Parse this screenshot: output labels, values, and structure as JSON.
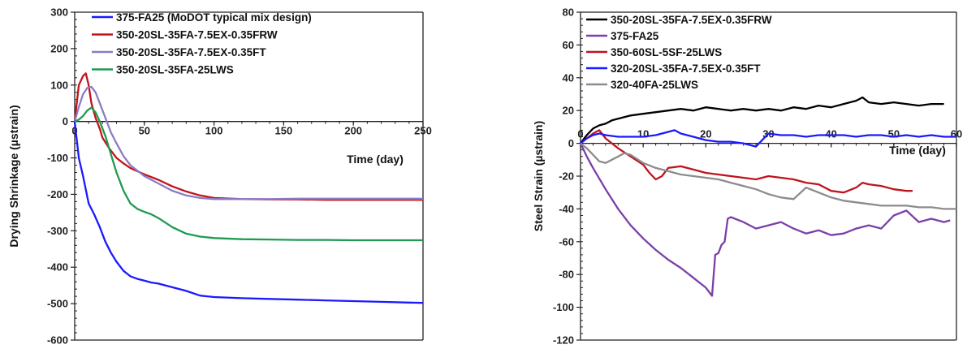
{
  "chart_data": [
    {
      "type": "line",
      "title": "",
      "xlabel": "Time (day)",
      "ylabel": "Drying Shrinkage (µstrain)",
      "xlim": [
        0,
        250
      ],
      "ylim": [
        -600,
        300
      ],
      "x_ticks": [
        "0",
        "50",
        "100",
        "150",
        "200",
        "250"
      ],
      "y_ticks": [
        "300",
        "200",
        "100",
        "0",
        "-100",
        "-200",
        "-300",
        "-400",
        "-500",
        "-600"
      ],
      "grid": false,
      "legend_position": "top-right",
      "series": [
        {
          "name": "375-FA25 (MoDOT typical mix design)",
          "color": "#1a1aff",
          "x": [
            0,
            3,
            6,
            10,
            14,
            18,
            22,
            26,
            30,
            35,
            40,
            45,
            50,
            55,
            60,
            70,
            80,
            90,
            100,
            120,
            140,
            160,
            180,
            200,
            220,
            240,
            250
          ],
          "y": [
            0,
            -100,
            -150,
            -225,
            -255,
            -290,
            -330,
            -360,
            -385,
            -410,
            -425,
            -432,
            -437,
            -442,
            -445,
            -455,
            -465,
            -478,
            -482,
            -485,
            -487,
            -489,
            -491,
            -493,
            -495,
            -497,
            -498
          ]
        },
        {
          "name": "350-20SL-35FA-7.5EX-0.35FRW",
          "color": "#c0141c",
          "x": [
            0,
            3,
            6,
            8,
            10,
            12,
            15,
            18,
            20,
            25,
            30,
            35,
            40,
            50,
            60,
            70,
            80,
            90,
            100,
            120,
            140,
            160,
            180,
            200,
            220,
            250
          ],
          "y": [
            0,
            100,
            125,
            132,
            100,
            50,
            10,
            -20,
            -45,
            -75,
            -100,
            -115,
            -128,
            -145,
            -160,
            -178,
            -192,
            -203,
            -210,
            -213,
            -214,
            -214,
            -215,
            -215,
            -215,
            -215
          ]
        },
        {
          "name": "350-20SL-35FA-7.5EX-0.35FT",
          "color": "#8c7cc4",
          "x": [
            0,
            3,
            6,
            9,
            12,
            15,
            18,
            22,
            26,
            30,
            35,
            40,
            50,
            60,
            70,
            80,
            90,
            100,
            120,
            140,
            160,
            180,
            200,
            220,
            250
          ],
          "y": [
            0,
            40,
            75,
            92,
            95,
            80,
            50,
            10,
            -30,
            -60,
            -95,
            -120,
            -150,
            -170,
            -190,
            -203,
            -210,
            -213,
            -213,
            -213,
            -212,
            -212,
            -212,
            -212,
            -212
          ]
        },
        {
          "name": "350-20SL-35FA-25LWS",
          "color": "#1f9a50",
          "x": [
            0,
            3,
            6,
            9,
            12,
            15,
            18,
            22,
            26,
            30,
            35,
            40,
            45,
            50,
            55,
            60,
            70,
            80,
            90,
            100,
            120,
            140,
            160,
            180,
            200,
            220,
            250
          ],
          "y": [
            0,
            5,
            15,
            30,
            38,
            25,
            0,
            -40,
            -90,
            -140,
            -190,
            -225,
            -240,
            -248,
            -255,
            -265,
            -290,
            -308,
            -316,
            -320,
            -323,
            -324,
            -325,
            -325,
            -326,
            -326,
            -326
          ]
        }
      ]
    },
    {
      "type": "line",
      "title": "",
      "xlabel": "Time (day)",
      "ylabel": "Steel Strain (µstrain)",
      "xlim": [
        0,
        60
      ],
      "ylim": [
        -120,
        80
      ],
      "x_ticks": [
        "0",
        "10",
        "20",
        "30",
        "40",
        "50",
        "60"
      ],
      "y_ticks": [
        "80",
        "60",
        "40",
        "20",
        "0",
        "-20",
        "-40",
        "-60",
        "-80",
        "-100",
        "-120"
      ],
      "grid": false,
      "legend_position": "top-left",
      "series": [
        {
          "name": "350-20SL-35FA-7.5EX-0.35FRW",
          "color": "#000000",
          "x": [
            0,
            1,
            2,
            3,
            4,
            5,
            6,
            8,
            10,
            12,
            14,
            16,
            18,
            20,
            22,
            24,
            26,
            28,
            30,
            32,
            34,
            36,
            38,
            40,
            42,
            44,
            45,
            46,
            48,
            50,
            52,
            54,
            56,
            58
          ],
          "y": [
            0,
            5,
            9,
            11,
            12,
            14,
            15,
            17,
            18,
            19,
            20,
            21,
            20,
            22,
            21,
            20,
            21,
            20,
            21,
            20,
            22,
            21,
            23,
            22,
            24,
            26,
            28,
            25,
            24,
            25,
            24,
            23,
            24,
            24
          ]
        },
        {
          "name": "375-FA25",
          "color": "#7b3fa8",
          "x": [
            0,
            1,
            2,
            4,
            6,
            8,
            10,
            12,
            14,
            16,
            18,
            20,
            21,
            21.5,
            22,
            22.5,
            23,
            23.5,
            24,
            26,
            28,
            30,
            32,
            34,
            36,
            38,
            40,
            42,
            44,
            46,
            48,
            50,
            52,
            54,
            56,
            58,
            59
          ],
          "y": [
            0,
            -8,
            -15,
            -28,
            -40,
            -50,
            -58,
            -65,
            -71,
            -76,
            -82,
            -88,
            -93,
            -68,
            -67,
            -62,
            -60,
            -46,
            -45,
            -48,
            -52,
            -50,
            -48,
            -52,
            -55,
            -53,
            -56,
            -55,
            -52,
            -50,
            -52,
            -44,
            -41,
            -48,
            -46,
            -48,
            -47
          ]
        },
        {
          "name": "350-60SL-5SF-25LWS",
          "color": "#c0141c",
          "x": [
            0,
            1,
            2,
            3,
            4,
            6,
            8,
            10,
            11,
            12,
            13,
            14,
            16,
            18,
            20,
            22,
            24,
            26,
            28,
            30,
            32,
            34,
            36,
            38,
            40,
            42,
            44,
            45,
            46,
            48,
            50,
            52,
            53
          ],
          "y": [
            0,
            3,
            6,
            8,
            3,
            -3,
            -8,
            -13,
            -18,
            -22,
            -20,
            -15,
            -14,
            -16,
            -18,
            -19,
            -20,
            -21,
            -22,
            -20,
            -21,
            -22,
            -24,
            -25,
            -29,
            -30,
            -27,
            -24,
            -25,
            -26,
            -28,
            -29,
            -29
          ]
        },
        {
          "name": "320-20SL-35FA-7.5EX-0.35FT",
          "color": "#1a1aff",
          "x": [
            0,
            1,
            2,
            3,
            4,
            6,
            8,
            10,
            12,
            14,
            15,
            16,
            18,
            20,
            22,
            24,
            26,
            27,
            28,
            29,
            30,
            32,
            34,
            36,
            38,
            40,
            42,
            44,
            46,
            48,
            50,
            52,
            54,
            56,
            58,
            60
          ],
          "y": [
            0,
            3,
            5,
            6,
            5,
            4,
            4,
            4,
            5,
            7,
            8,
            6,
            4,
            2,
            1,
            1,
            0,
            -1,
            -2,
            2,
            6,
            5,
            5,
            4,
            5,
            5,
            5,
            4,
            5,
            5,
            4,
            5,
            4,
            5,
            4,
            4
          ]
        },
        {
          "name": "320-40FA-25LWS",
          "color": "#8c8c8c",
          "x": [
            0,
            1,
            2,
            3,
            4,
            5,
            6,
            7,
            8,
            10,
            12,
            14,
            16,
            18,
            20,
            22,
            24,
            26,
            28,
            30,
            32,
            34,
            36,
            38,
            40,
            42,
            44,
            46,
            48,
            50,
            52,
            54,
            56,
            58,
            60
          ],
          "y": [
            0,
            -3,
            -7,
            -11,
            -12,
            -10,
            -8,
            -6,
            -7,
            -12,
            -15,
            -17,
            -19,
            -20,
            -21,
            -22,
            -24,
            -26,
            -28,
            -31,
            -33,
            -34,
            -27,
            -30,
            -33,
            -35,
            -36,
            -37,
            -38,
            -38,
            -38,
            -39,
            -39,
            -40,
            -40
          ]
        }
      ]
    }
  ]
}
